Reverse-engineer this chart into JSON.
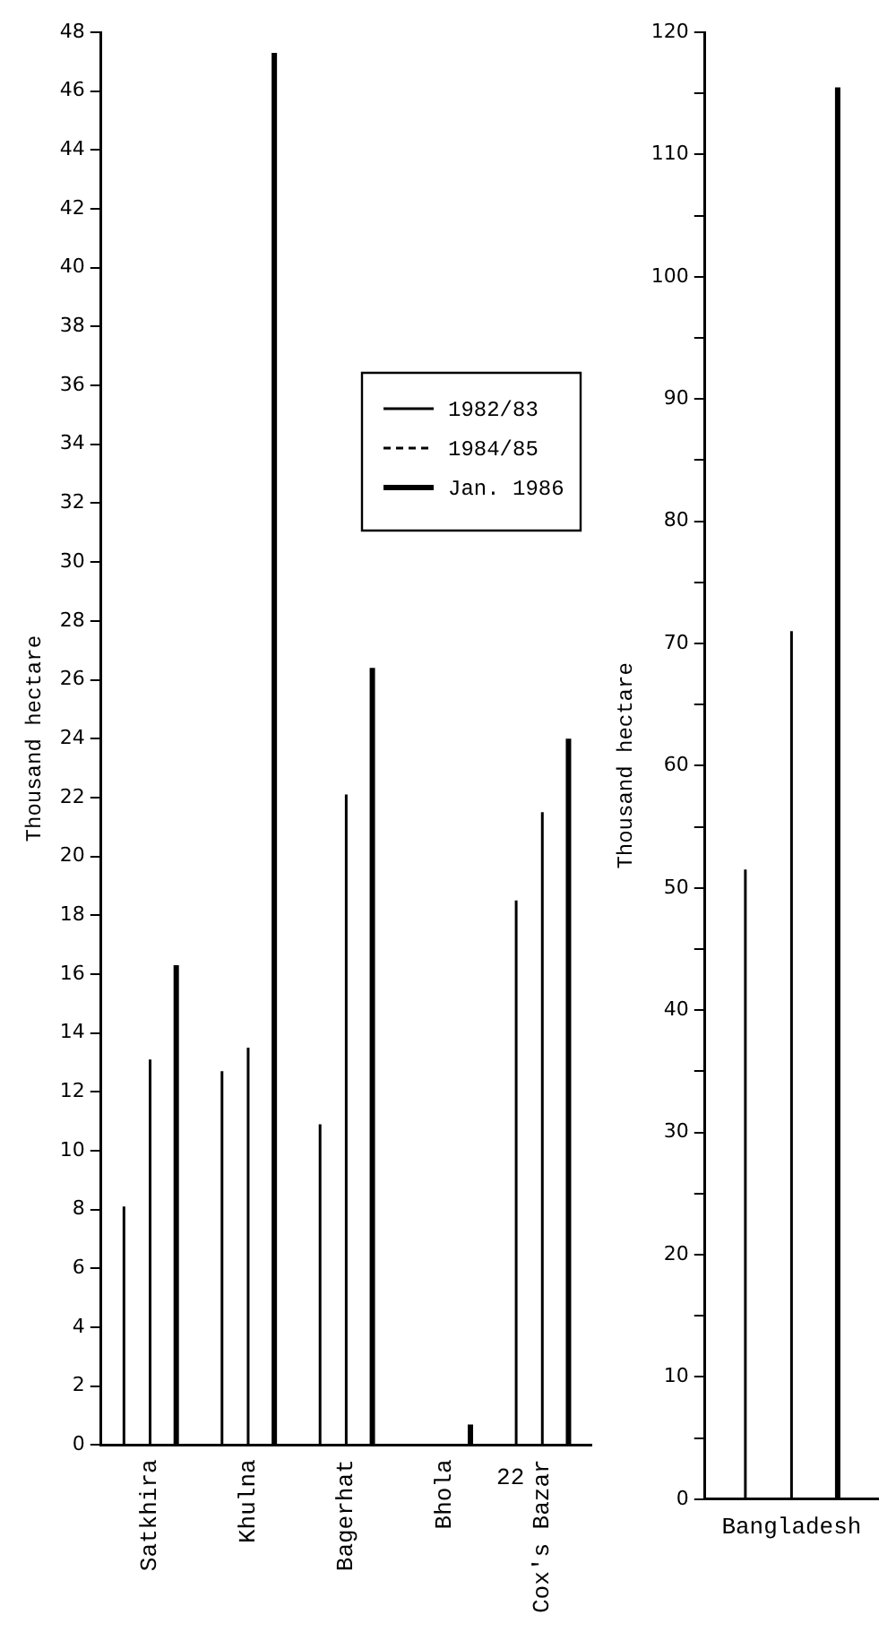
{
  "chart_data": [
    {
      "type": "bar",
      "ylabel": "Thousand hectare",
      "categories": [
        "Satkhira",
        "Khulna",
        "Bagerhat",
        "Bhola",
        "Cox's Bazar"
      ],
      "series": [
        {
          "name": "1982/83",
          "color": "#000000",
          "line_style": "solid",
          "values": [
            8.1,
            12.7,
            10.9,
            null,
            18.5
          ]
        },
        {
          "name": "1984/85",
          "color": "#000000",
          "line_style": "dashed",
          "values": [
            13.1,
            13.5,
            22.1,
            null,
            21.5
          ]
        },
        {
          "name": "Jan. 1986",
          "color": "#000000",
          "line_style": "solid",
          "values": [
            16.3,
            47.3,
            26.4,
            0.7,
            24.0
          ]
        }
      ],
      "ylim": [
        0,
        48
      ],
      "yticks": [
        0,
        2,
        4,
        6,
        8,
        10,
        12,
        14,
        16,
        18,
        20,
        22,
        24,
        26,
        28,
        30,
        32,
        34,
        36,
        38,
        40,
        42,
        44,
        46,
        48
      ],
      "grid": false,
      "legend": "top right",
      "annotations": [
        "22"
      ]
    },
    {
      "type": "bar",
      "ylabel": "Thousand hectare",
      "categories": [
        "Bangladesh"
      ],
      "series": [
        {
          "color": "#000000",
          "line_style": "solid",
          "values": [
            51.5
          ]
        },
        {
          "color": "#000000",
          "line_style": "dashed",
          "values": [
            71
          ]
        },
        {
          "color": "#000000",
          "line_style": "solid",
          "values": [
            115.5
          ]
        }
      ],
      "ylim": [
        0,
        120
      ],
      "yticks": [
        0,
        {
          "value": 5,
          "label": null
        },
        10,
        {
          "value": 15,
          "label": null
        },
        20,
        {
          "value": 25,
          "label": null
        },
        30,
        {
          "value": 35,
          "label": null
        },
        40,
        {
          "value": 45,
          "label": null
        },
        50,
        {
          "value": 55,
          "label": null
        },
        60,
        {
          "value": 65,
          "label": null
        },
        70,
        {
          "value": 75,
          "label": null
        },
        80,
        {
          "value": 85,
          "label": null
        },
        90,
        {
          "value": 95,
          "label": null
        },
        100,
        {
          "value": 105,
          "label": null
        },
        110,
        {
          "value": 115,
          "label": null
        },
        120
      ],
      "grid": false
    }
  ]
}
